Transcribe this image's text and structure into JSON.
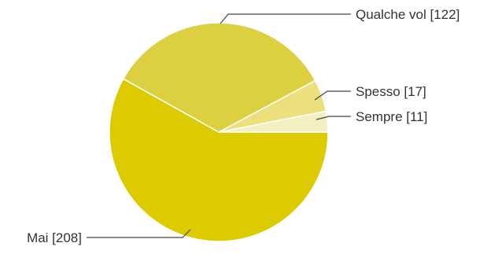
{
  "chart_data": {
    "type": "pie",
    "title": "",
    "slices": [
      {
        "label": "Sempre [11]",
        "name": "Sempre",
        "value": 11,
        "color": "#f3efc0"
      },
      {
        "label": "Spesso [17]",
        "name": "Spesso",
        "value": 17,
        "color": "#ebe07c"
      },
      {
        "label": "Qualche vol [122]",
        "name": "Qualche vol",
        "value": 122,
        "color": "#dcd040"
      },
      {
        "label": "Mai [208]",
        "name": "Mai",
        "value": 208,
        "color": "#dccb00"
      }
    ]
  }
}
